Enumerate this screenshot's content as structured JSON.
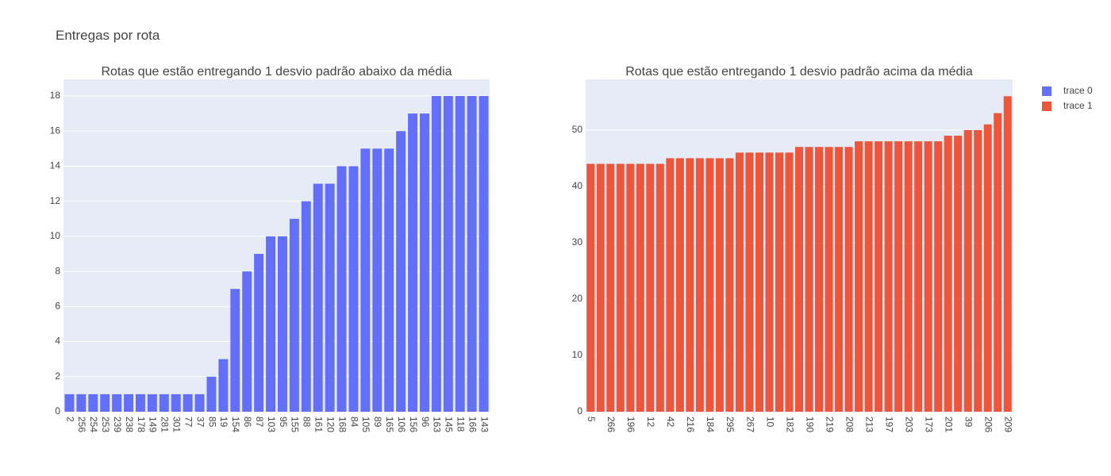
{
  "title": "Entregas por rota",
  "chart_data": [
    {
      "type": "bar",
      "title": "Rotas que estão entregando 1 desvio padrão abaixo da média",
      "name": "trace 0",
      "color": "#636efa",
      "categories": [
        "2",
        "256",
        "254",
        "253",
        "239",
        "238",
        "178",
        "149",
        "281",
        "301",
        "77",
        "37",
        "85",
        "19",
        "154",
        "86",
        "87",
        "103",
        "95",
        "155",
        "88",
        "161",
        "120",
        "168",
        "84",
        "105",
        "89",
        "165",
        "106",
        "156",
        "96",
        "163",
        "145",
        "118",
        "166",
        "143"
      ],
      "values": [
        1,
        1,
        1,
        1,
        1,
        1,
        1,
        1,
        1,
        1,
        1,
        1,
        2,
        3,
        7,
        8,
        9,
        10,
        10,
        11,
        12,
        13,
        13,
        14,
        14,
        15,
        15,
        15,
        16,
        17,
        17,
        18,
        18,
        18,
        18,
        18
      ],
      "ylim": [
        0,
        18.95
      ],
      "yticks": [
        0,
        2,
        4,
        6,
        8,
        10,
        12,
        14,
        16,
        18
      ],
      "grid": true
    },
    {
      "type": "bar",
      "title": "Rotas que estão entregando 1 desvio padrão acima da média",
      "name": "trace 1",
      "color": "#ef553b",
      "categories": [
        "5",
        null,
        "266",
        null,
        "196",
        null,
        "12",
        null,
        "42",
        null,
        "216",
        null,
        "184",
        null,
        "295",
        null,
        "267",
        null,
        "10",
        null,
        "182",
        null,
        "190",
        null,
        "219",
        null,
        "208",
        null,
        "213",
        null,
        "197",
        null,
        "203",
        null,
        "173",
        null,
        "201",
        null,
        "39",
        null,
        "206",
        null,
        "209"
      ],
      "values": [
        44,
        44,
        44,
        44,
        44,
        44,
        44,
        44,
        45,
        45,
        45,
        45,
        45,
        45,
        45,
        46,
        46,
        46,
        46,
        46,
        46,
        47,
        47,
        47,
        47,
        47,
        47,
        48,
        48,
        48,
        48,
        48,
        48,
        48,
        48,
        48,
        49,
        49,
        50,
        50,
        51,
        53,
        56
      ],
      "ylim": [
        0,
        59
      ],
      "yticks": [
        0,
        10,
        20,
        30,
        40,
        50
      ],
      "grid": true
    }
  ]
}
